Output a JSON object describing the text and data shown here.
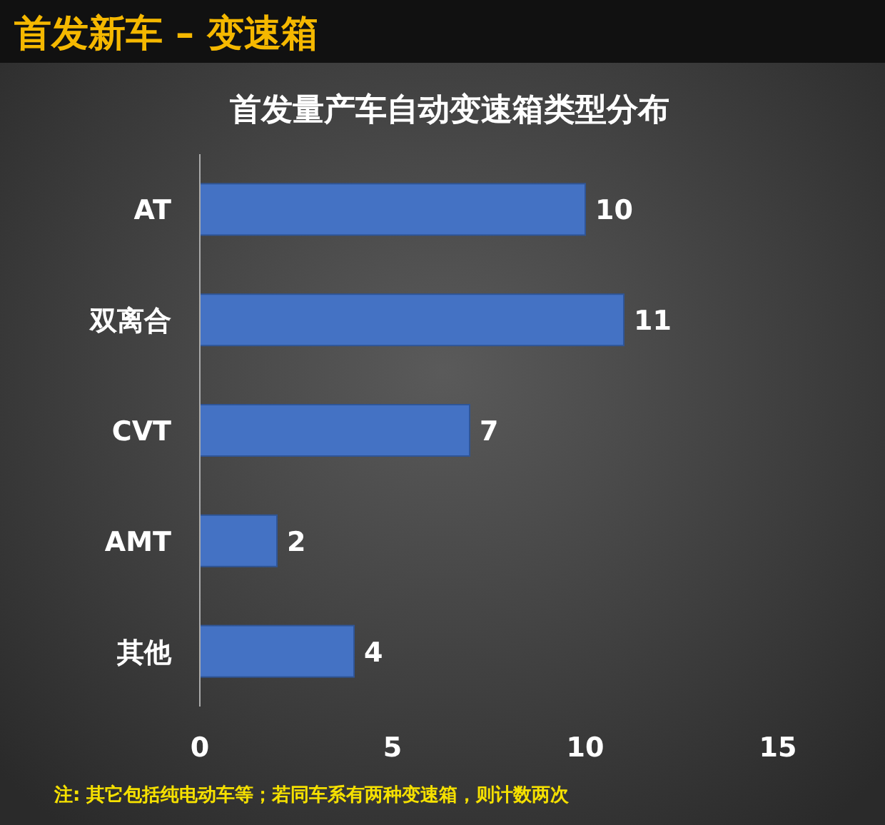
{
  "chart_data": {
    "type": "bar",
    "orientation": "horizontal",
    "title": "首发新车 – 变速箱",
    "subtitle": "首发量产车自动变速箱类型分布",
    "categories": [
      "AT",
      "双离合",
      "CVT",
      "AMT",
      "其他"
    ],
    "values": [
      10,
      11,
      7,
      2,
      4
    ],
    "color": "#4472c4",
    "data_labels": true,
    "xlim": [
      0,
      15
    ],
    "xticks": [
      0,
      5,
      10,
      15
    ],
    "annotations": [
      "注: 其它包括纯电动车等；若同车系有两种变速箱，则计数两次"
    ]
  }
}
